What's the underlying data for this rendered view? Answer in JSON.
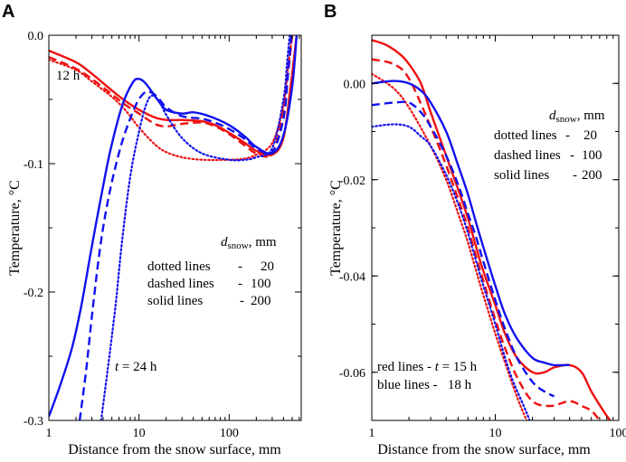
{
  "chart_data": [
    {
      "panel": "A",
      "type": "line",
      "xscale": "log",
      "xlim": [
        1,
        630
      ],
      "ylim": [
        -0.3,
        0.0
      ],
      "xlabel": "Distance from the snow surface, mm",
      "ylabel": "Temperature, °C",
      "x_ticks": [
        {
          "v": 1,
          "label": "1"
        },
        {
          "v": 10,
          "label": "10"
        },
        {
          "v": 100,
          "label": "100"
        }
      ],
      "y_ticks": [
        {
          "v": 0.0,
          "label": "0.0"
        },
        {
          "v": -0.1,
          "label": "-0.1"
        },
        {
          "v": -0.2,
          "label": "-0.2"
        },
        {
          "v": -0.3,
          "label": "-0.3"
        }
      ],
      "series": [
        {
          "name": "12 h, 20 mm",
          "color": "#ee1111",
          "dash": "dotted",
          "points": [
            [
              1,
              -0.019
            ],
            [
              2,
              -0.027
            ],
            [
              3,
              -0.036
            ],
            [
              5,
              -0.048
            ],
            [
              7,
              -0.058
            ],
            [
              10,
              -0.072
            ],
            [
              15,
              -0.085
            ],
            [
              20,
              -0.091
            ],
            [
              30,
              -0.095
            ],
            [
              50,
              -0.097
            ],
            [
              100,
              -0.097
            ],
            [
              150,
              -0.096
            ],
            [
              200,
              -0.093
            ],
            [
              300,
              -0.084
            ],
            [
              400,
              -0.055
            ],
            [
              450,
              -0.025
            ],
            [
              500,
              0.0
            ]
          ]
        },
        {
          "name": "12 h, 100 mm",
          "color": "#ee1111",
          "dash": "dashed",
          "points": [
            [
              1,
              -0.017
            ],
            [
              2,
              -0.026
            ],
            [
              3,
              -0.034
            ],
            [
              5,
              -0.046
            ],
            [
              7,
              -0.054
            ],
            [
              10,
              -0.061
            ],
            [
              15,
              -0.069
            ],
            [
              20,
              -0.071
            ],
            [
              30,
              -0.069
            ],
            [
              50,
              -0.068
            ],
            [
              70,
              -0.071
            ],
            [
              100,
              -0.077
            ],
            [
              150,
              -0.086
            ],
            [
              200,
              -0.092
            ],
            [
              300,
              -0.092
            ],
            [
              400,
              -0.06
            ],
            [
              450,
              -0.03
            ],
            [
              500,
              0.0
            ]
          ]
        },
        {
          "name": "12 h, 200 mm",
          "color": "#ee1111",
          "dash": "solid",
          "points": [
            [
              1,
              -0.012
            ],
            [
              2,
              -0.021
            ],
            [
              3,
              -0.03
            ],
            [
              5,
              -0.043
            ],
            [
              7,
              -0.051
            ],
            [
              10,
              -0.058
            ],
            [
              15,
              -0.064
            ],
            [
              20,
              -0.066
            ],
            [
              30,
              -0.066
            ],
            [
              50,
              -0.067
            ],
            [
              70,
              -0.07
            ],
            [
              100,
              -0.076
            ],
            [
              150,
              -0.084
            ],
            [
              200,
              -0.09
            ],
            [
              300,
              -0.093
            ],
            [
              400,
              -0.08
            ],
            [
              480,
              -0.04
            ],
            [
              560,
              0.0
            ]
          ]
        },
        {
          "name": "24 h, 20 mm",
          "color": "#1111ee",
          "dash": "dotted",
          "points": [
            [
              3.8,
              -0.3
            ],
            [
              4.5,
              -0.26
            ],
            [
              5.5,
              -0.21
            ],
            [
              6.5,
              -0.16
            ],
            [
              8,
              -0.11
            ],
            [
              10,
              -0.075
            ],
            [
              12,
              -0.054
            ],
            [
              14,
              -0.047
            ],
            [
              17,
              -0.052
            ],
            [
              20,
              -0.062
            ],
            [
              30,
              -0.08
            ],
            [
              50,
              -0.092
            ],
            [
              100,
              -0.097
            ],
            [
              150,
              -0.097
            ],
            [
              200,
              -0.095
            ],
            [
              300,
              -0.088
            ],
            [
              400,
              -0.05
            ],
            [
              440,
              -0.02
            ],
            [
              470,
              0.0
            ]
          ]
        },
        {
          "name": "24 h, 100 mm",
          "color": "#1111ee",
          "dash": "dashed",
          "points": [
            [
              2.2,
              -0.3
            ],
            [
              2.6,
              -0.26
            ],
            [
              3.1,
              -0.21
            ],
            [
              3.8,
              -0.16
            ],
            [
              4.8,
              -0.12
            ],
            [
              6.5,
              -0.083
            ],
            [
              9,
              -0.056
            ],
            [
              11,
              -0.046
            ],
            [
              13,
              -0.044
            ],
            [
              16,
              -0.048
            ],
            [
              20,
              -0.056
            ],
            [
              30,
              -0.063
            ],
            [
              50,
              -0.065
            ],
            [
              70,
              -0.068
            ],
            [
              100,
              -0.073
            ],
            [
              150,
              -0.081
            ],
            [
              200,
              -0.088
            ],
            [
              300,
              -0.091
            ],
            [
              400,
              -0.065
            ],
            [
              450,
              -0.03
            ],
            [
              490,
              0.0
            ]
          ]
        },
        {
          "name": "24 h, 200 mm",
          "color": "#1111ee",
          "dash": "solid",
          "points": [
            [
              1,
              -0.297
            ],
            [
              1.3,
              -0.275
            ],
            [
              1.8,
              -0.244
            ],
            [
              2.3,
              -0.21
            ],
            [
              2.9,
              -0.17
            ],
            [
              3.7,
              -0.13
            ],
            [
              4.8,
              -0.09
            ],
            [
              6.5,
              -0.055
            ],
            [
              8.5,
              -0.037
            ],
            [
              10,
              -0.034
            ],
            [
              12,
              -0.038
            ],
            [
              16,
              -0.05
            ],
            [
              20,
              -0.058
            ],
            [
              30,
              -0.061
            ],
            [
              40,
              -0.06
            ],
            [
              60,
              -0.063
            ],
            [
              100,
              -0.07
            ],
            [
              150,
              -0.079
            ],
            [
              200,
              -0.087
            ],
            [
              300,
              -0.092
            ],
            [
              400,
              -0.078
            ],
            [
              500,
              -0.04
            ],
            [
              560,
              0.0
            ]
          ]
        }
      ],
      "annotations": {
        "label_12h": "12 h",
        "label_24h_prefix": "t",
        "label_24h_suffix": " = 24 h"
      },
      "legend": {
        "title_var": "d",
        "title_sub": "snow",
        "title_unit": ", mm",
        "rows": [
          {
            "label": "dotted lines",
            "sep": "-",
            "value": "20"
          },
          {
            "label": "dashed lines",
            "sep": "-",
            "value": "100"
          },
          {
            "label": "solid lines",
            "sep": "-",
            "value": "200"
          }
        ]
      }
    },
    {
      "panel": "B",
      "type": "line",
      "xscale": "log",
      "xlim": [
        1,
        100
      ],
      "ylim": [
        -0.07,
        0.01
      ],
      "xlabel": "Distance from the snow surface, mm",
      "ylabel": "Temperature, °C",
      "x_ticks": [
        {
          "v": 1,
          "label": "1"
        },
        {
          "v": 10,
          "label": "10"
        },
        {
          "v": 100,
          "label": "100"
        }
      ],
      "y_ticks": [
        {
          "v": 0.0,
          "label": "0.00"
        },
        {
          "v": -0.02,
          "label": "-0.02"
        },
        {
          "v": -0.04,
          "label": "-0.04"
        },
        {
          "v": -0.06,
          "label": "-0.06"
        }
      ],
      "series": [
        {
          "name": "15 h, 20 mm",
          "color": "#ee1111",
          "dash": "dotted",
          "points": [
            [
              1,
              0.002
            ],
            [
              1.5,
              -0.001
            ],
            [
              2,
              -0.005
            ],
            [
              3,
              -0.013
            ],
            [
              4,
              -0.02
            ],
            [
              5,
              -0.027
            ],
            [
              6,
              -0.033
            ],
            [
              7,
              -0.039
            ],
            [
              8,
              -0.044
            ],
            [
              10,
              -0.052
            ],
            [
              12,
              -0.058
            ],
            [
              14,
              -0.063
            ],
            [
              16,
              -0.067
            ],
            [
              18,
              -0.07
            ]
          ]
        },
        {
          "name": "15 h, 100 mm",
          "color": "#ee1111",
          "dash": "dashed",
          "points": [
            [
              1,
              0.005
            ],
            [
              1.5,
              0.004
            ],
            [
              2,
              0.001
            ],
            [
              3,
              -0.009
            ],
            [
              4,
              -0.017
            ],
            [
              5,
              -0.024
            ],
            [
              6,
              -0.03
            ],
            [
              7,
              -0.036
            ],
            [
              8,
              -0.041
            ],
            [
              10,
              -0.049
            ],
            [
              12,
              -0.055
            ],
            [
              15,
              -0.061
            ],
            [
              20,
              -0.066
            ],
            [
              28,
              -0.067
            ],
            [
              40,
              -0.066
            ],
            [
              50,
              -0.067
            ],
            [
              60,
              -0.068
            ],
            [
              70,
              -0.07
            ]
          ]
        },
        {
          "name": "15 h, 200 mm",
          "color": "#ee1111",
          "dash": "solid",
          "points": [
            [
              1,
              0.009
            ],
            [
              1.3,
              0.008
            ],
            [
              1.7,
              0.006
            ],
            [
              2,
              0.004
            ],
            [
              2.5,
              0.0
            ],
            [
              3,
              -0.006
            ],
            [
              4,
              -0.015
            ],
            [
              5,
              -0.022
            ],
            [
              6,
              -0.028
            ],
            [
              7,
              -0.034
            ],
            [
              8,
              -0.039
            ],
            [
              10,
              -0.046
            ],
            [
              12,
              -0.052
            ],
            [
              15,
              -0.057
            ],
            [
              20,
              -0.06
            ],
            [
              25,
              -0.06
            ],
            [
              30,
              -0.059
            ],
            [
              40,
              -0.0585
            ],
            [
              50,
              -0.06
            ],
            [
              60,
              -0.064
            ],
            [
              75,
              -0.068
            ],
            [
              85,
              -0.07
            ]
          ]
        },
        {
          "name": "18 h, 20 mm",
          "color": "#1111ee",
          "dash": "dotted",
          "points": [
            [
              1,
              -0.009
            ],
            [
              1.5,
              -0.0085
            ],
            [
              2,
              -0.009
            ],
            [
              2.5,
              -0.011
            ],
            [
              3,
              -0.013
            ],
            [
              4,
              -0.019
            ],
            [
              5,
              -0.025
            ],
            [
              6,
              -0.031
            ],
            [
              7,
              -0.037
            ],
            [
              8,
              -0.042
            ],
            [
              10,
              -0.05
            ],
            [
              12,
              -0.057
            ],
            [
              14,
              -0.062
            ],
            [
              17,
              -0.067
            ],
            [
              19,
              -0.07
            ]
          ]
        },
        {
          "name": "18 h, 100 mm",
          "color": "#1111ee",
          "dash": "dashed",
          "points": [
            [
              1,
              -0.0045
            ],
            [
              1.5,
              -0.004
            ],
            [
              2,
              -0.004
            ],
            [
              2.5,
              -0.006
            ],
            [
              3,
              -0.009
            ],
            [
              4,
              -0.015
            ],
            [
              5,
              -0.021
            ],
            [
              6,
              -0.027
            ],
            [
              7,
              -0.032
            ],
            [
              8,
              -0.037
            ],
            [
              10,
              -0.045
            ],
            [
              12,
              -0.051
            ],
            [
              15,
              -0.057
            ],
            [
              20,
              -0.062
            ],
            [
              25,
              -0.064
            ],
            [
              30,
              -0.065
            ]
          ]
        },
        {
          "name": "18 h, 200 mm",
          "color": "#1111ee",
          "dash": "solid",
          "points": [
            [
              1,
              0.0
            ],
            [
              1.5,
              0.0005
            ],
            [
              2,
              0.0
            ],
            [
              2.5,
              -0.0015
            ],
            [
              3,
              -0.004
            ],
            [
              4,
              -0.01
            ],
            [
              5,
              -0.017
            ],
            [
              6,
              -0.023
            ],
            [
              7,
              -0.029
            ],
            [
              8,
              -0.034
            ],
            [
              10,
              -0.042
            ],
            [
              12,
              -0.048
            ],
            [
              15,
              -0.053
            ],
            [
              20,
              -0.057
            ],
            [
              25,
              -0.058
            ],
            [
              30,
              -0.0585
            ],
            [
              40,
              -0.0585
            ]
          ]
        }
      ],
      "legend": {
        "title_var": "d",
        "title_sub": "snow",
        "title_unit": ", mm",
        "rows": [
          {
            "label": "dotted lines",
            "sep": "-",
            "value": "20"
          },
          {
            "label": "dashed lines",
            "sep": "-",
            "value": "100"
          },
          {
            "label": "solid lines",
            "sep": "-",
            "value": "200"
          }
        ]
      },
      "color_legend": {
        "red_prefix": "red lines - ",
        "red_var": "t",
        "red_suffix": " = 15 h",
        "red_color": "#ee1111",
        "blue_text": "blue lines -   18 h",
        "blue_color": "#1111ee"
      }
    }
  ],
  "panels": {
    "a_letter": "A",
    "b_letter": "B"
  }
}
